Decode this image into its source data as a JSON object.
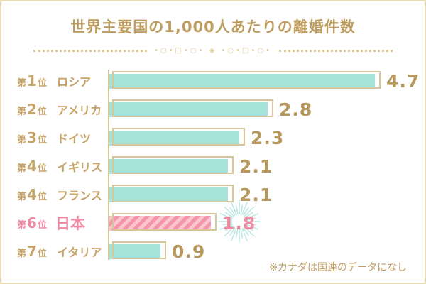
{
  "title": "世界主要国の1,000人あたりの離婚件数",
  "divider_ornament": "•○•□•○• ◈ •○•□•○•",
  "footnote": "※カナダは国連のデータになし",
  "rank_prefix": "第",
  "rank_suffix": "位",
  "colors": {
    "gold_text": "#bd9c60",
    "gold_label": "#c6a468",
    "gold_line": "#d5c79b",
    "teal_bar": "#a5e3d9",
    "pink_text": "#ef8aa3",
    "pink_stripe_light": "#fbc4ce",
    "pink_stripe_dark": "#f394a9",
    "burst_teal": "#b9e8e0"
  },
  "chart_data": {
    "type": "bar",
    "orientation": "horizontal",
    "title": "世界主要国の1,000人あたりの離婚件数",
    "categories": [
      "ロシア",
      "アメリカ",
      "ドイツ",
      "イギリス",
      "フランス",
      "日本",
      "イタリア"
    ],
    "values": [
      4.7,
      2.8,
      2.3,
      2.1,
      2.1,
      1.8,
      0.9
    ],
    "xlim": [
      0,
      5
    ],
    "grid": false,
    "legend": false,
    "highlight_category": "日本",
    "footnote": "※カナダは国連のデータになし",
    "rows": [
      {
        "rank_no": "1",
        "country": "ロシア",
        "value": "4.7",
        "highlight": false
      },
      {
        "rank_no": "2",
        "country": "アメリカ",
        "value": "2.8",
        "highlight": false
      },
      {
        "rank_no": "3",
        "country": "ドイツ",
        "value": "2.3",
        "highlight": false
      },
      {
        "rank_no": "4",
        "country": "イギリス",
        "value": "2.1",
        "highlight": false
      },
      {
        "rank_no": "4",
        "country": "フランス",
        "value": "2.1",
        "highlight": false
      },
      {
        "rank_no": "6",
        "country": "日本",
        "value": "1.8",
        "highlight": true
      },
      {
        "rank_no": "7",
        "country": "イタリア",
        "value": "0.9",
        "highlight": false
      }
    ]
  }
}
